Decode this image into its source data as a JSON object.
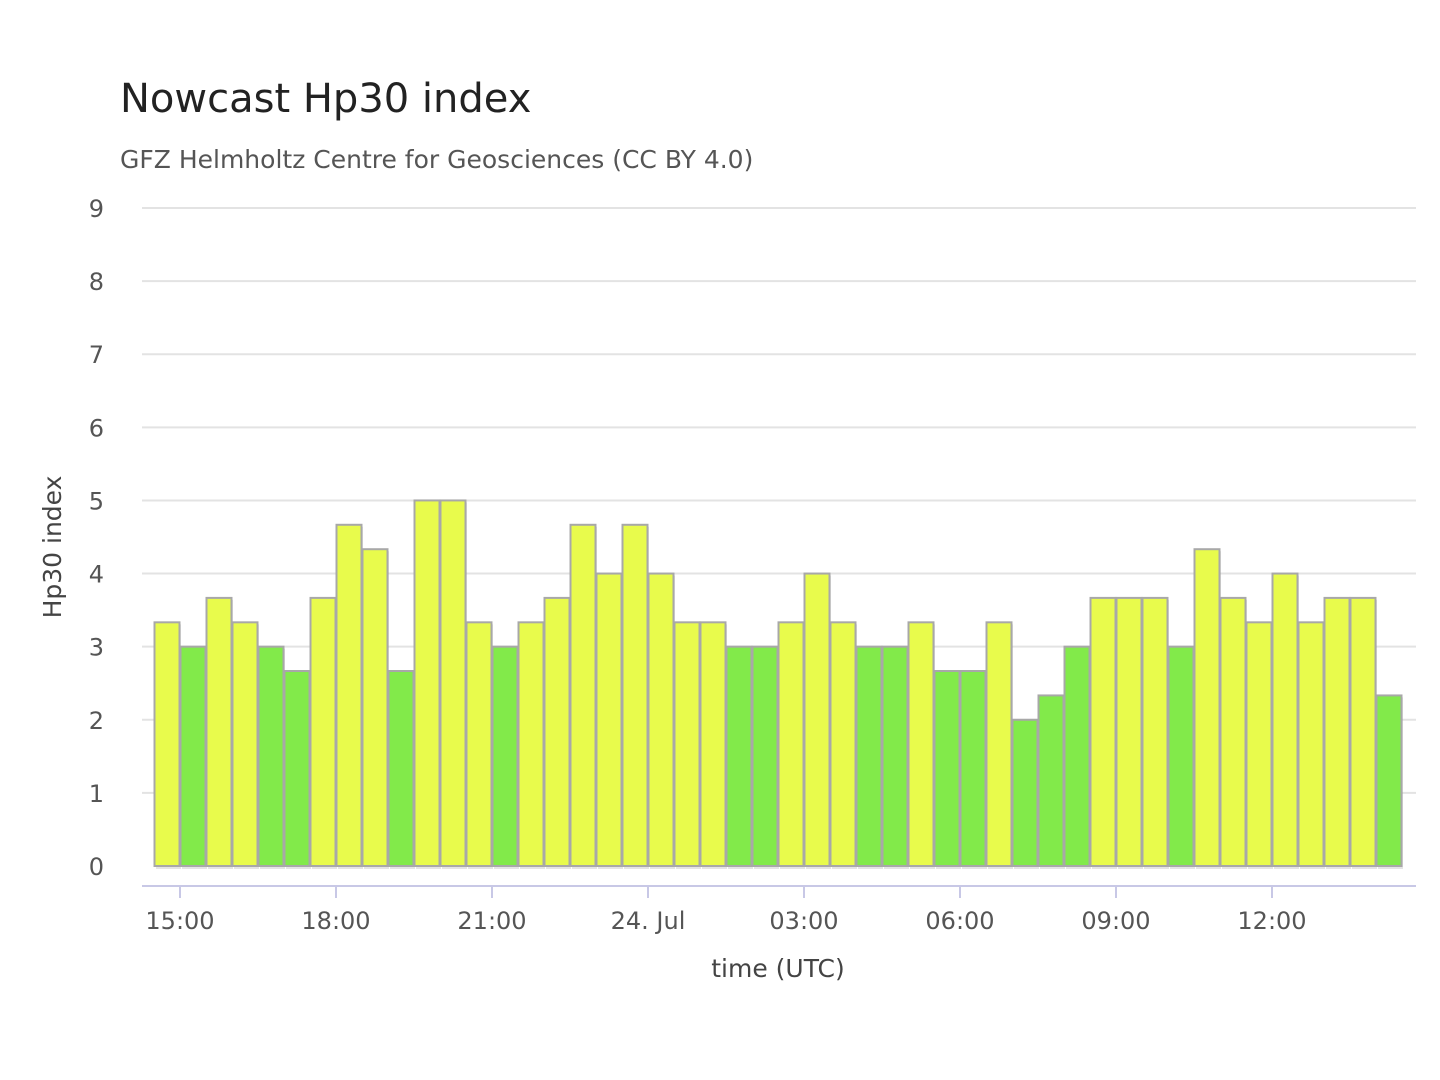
{
  "chart_data": {
    "type": "bar",
    "title": "Nowcast Hp30 index",
    "subtitle": "GFZ Helmholtz Centre for Geosciences (CC BY 4.0)",
    "xlabel": "time (UTC)",
    "ylabel": "Hp30 index",
    "ylim": [
      0,
      9
    ],
    "yticks": [
      0,
      1,
      2,
      3,
      4,
      5,
      6,
      7,
      8,
      9
    ],
    "grid": true,
    "legend": "none",
    "x_tick_labels": [
      "15:00",
      "18:00",
      "21:00",
      "24. Jul",
      "03:00",
      "06:00",
      "09:00",
      "12:00"
    ],
    "interval_minutes": 30,
    "first_bar_time": "2025-07-23 14:30 UTC",
    "colors": {
      "green": "#82ea4a",
      "yellow": "#e8fb4c",
      "bar_border": "#a8a8a8",
      "grid": "#e3e3e3",
      "axis": "#c8c8e6"
    },
    "values": [
      3.333,
      3,
      3.667,
      3.333,
      3,
      2.667,
      3.667,
      4.667,
      4.333,
      2.667,
      5,
      5,
      3.333,
      3,
      3.333,
      3.667,
      4.667,
      4,
      4.667,
      4,
      3.333,
      3.333,
      3,
      3,
      3.333,
      4,
      3.333,
      3,
      3,
      3.333,
      2.667,
      2.667,
      3.333,
      2,
      2.333,
      3,
      3.667,
      3.667,
      3.667,
      3,
      4.333,
      3.667,
      3.333,
      4,
      3.333,
      3.667,
      3.667,
      2.333
    ],
    "bar_colors": [
      "yellow",
      "green",
      "yellow",
      "yellow",
      "green",
      "green",
      "yellow",
      "yellow",
      "yellow",
      "green",
      "yellow",
      "yellow",
      "yellow",
      "green",
      "yellow",
      "yellow",
      "yellow",
      "yellow",
      "yellow",
      "yellow",
      "yellow",
      "yellow",
      "green",
      "green",
      "yellow",
      "yellow",
      "yellow",
      "green",
      "green",
      "yellow",
      "green",
      "green",
      "yellow",
      "green",
      "green",
      "green",
      "yellow",
      "yellow",
      "yellow",
      "green",
      "yellow",
      "yellow",
      "yellow",
      "yellow",
      "yellow",
      "yellow",
      "yellow",
      "green"
    ]
  }
}
